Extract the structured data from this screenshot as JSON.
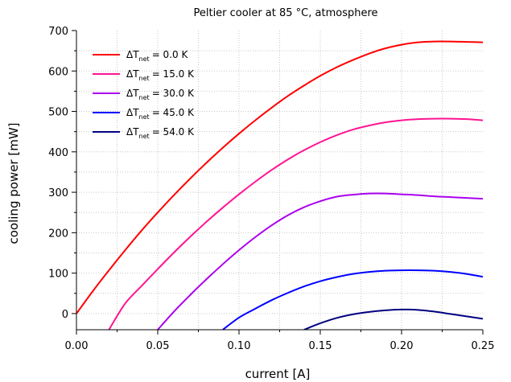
{
  "chart_data": {
    "type": "line",
    "title": "Peltier cooler at 85 °C, atmosphere",
    "xlabel": "current [A]",
    "ylabel": "cooling power [mW]",
    "xlim": [
      0.0,
      0.25
    ],
    "ylim": [
      -40,
      700
    ],
    "xticks": [
      0.0,
      0.05,
      0.1,
      0.15,
      0.2,
      0.25
    ],
    "xtick_labels": [
      "0.00",
      "0.05",
      "0.10",
      "0.15",
      "0.20",
      "0.25"
    ],
    "yticks": [
      0,
      100,
      200,
      300,
      400,
      500,
      600,
      700
    ],
    "ytick_labels": [
      "0",
      "100",
      "200",
      "300",
      "400",
      "500",
      "600",
      "700"
    ],
    "grid": true,
    "legend_position": "top-left",
    "x": [
      0.0,
      0.01,
      0.02,
      0.03,
      0.04,
      0.05,
      0.06,
      0.07,
      0.08,
      0.09,
      0.1,
      0.11,
      0.12,
      0.13,
      0.14,
      0.15,
      0.16,
      0.17,
      0.18,
      0.19,
      0.2,
      0.21,
      0.22,
      0.23,
      0.24,
      0.25
    ],
    "series": [
      {
        "name_prefix": "ΔT",
        "name_sub": "net",
        "name_value": "=   0.0 K",
        "color": "#ff0000",
        "values": [
          0,
          55,
          107,
          157,
          205,
          250,
          293,
          334,
          373,
          410,
          445,
          478,
          509,
          538,
          564,
          588,
          609,
          627,
          643,
          656,
          665,
          671,
          673,
          673,
          672,
          671
        ]
      },
      {
        "name_prefix": "ΔT",
        "name_sub": "net",
        "name_value": "= 15.0 K",
        "color": "#ff1493",
        "values": [
          null,
          null,
          -40,
          25,
          68,
          110,
          151,
          190,
          227,
          262,
          295,
          326,
          355,
          381,
          404,
          424,
          441,
          455,
          465,
          473,
          478,
          481,
          482,
          482,
          481,
          478
        ]
      },
      {
        "name_prefix": "ΔT",
        "name_sub": "net",
        "name_value": "= 30.0 K",
        "color": "#aa00ee",
        "values": [
          null,
          null,
          null,
          null,
          null,
          -40,
          5,
          46,
          85,
          122,
          157,
          189,
          218,
          243,
          263,
          278,
          289,
          294,
          297,
          297,
          295,
          293,
          290,
          288,
          286,
          284
        ]
      },
      {
        "name_prefix": "ΔT",
        "name_sub": "net",
        "name_value": "= 45.0 K",
        "color": "#0000ff",
        "values": [
          null,
          null,
          null,
          null,
          null,
          null,
          null,
          null,
          null,
          -40,
          -10,
          12,
          33,
          51,
          67,
          80,
          90,
          98,
          103,
          106,
          107,
          107,
          106,
          103,
          98,
          91
        ]
      },
      {
        "name_prefix": "ΔT",
        "name_sub": "net",
        "name_value": "= 54.0 K",
        "color": "#000080",
        "values": [
          null,
          null,
          null,
          null,
          null,
          null,
          null,
          null,
          null,
          null,
          null,
          null,
          null,
          null,
          -40,
          -24,
          -11,
          -2,
          4,
          8,
          10,
          9,
          5,
          -1,
          -7,
          -13
        ]
      }
    ]
  }
}
